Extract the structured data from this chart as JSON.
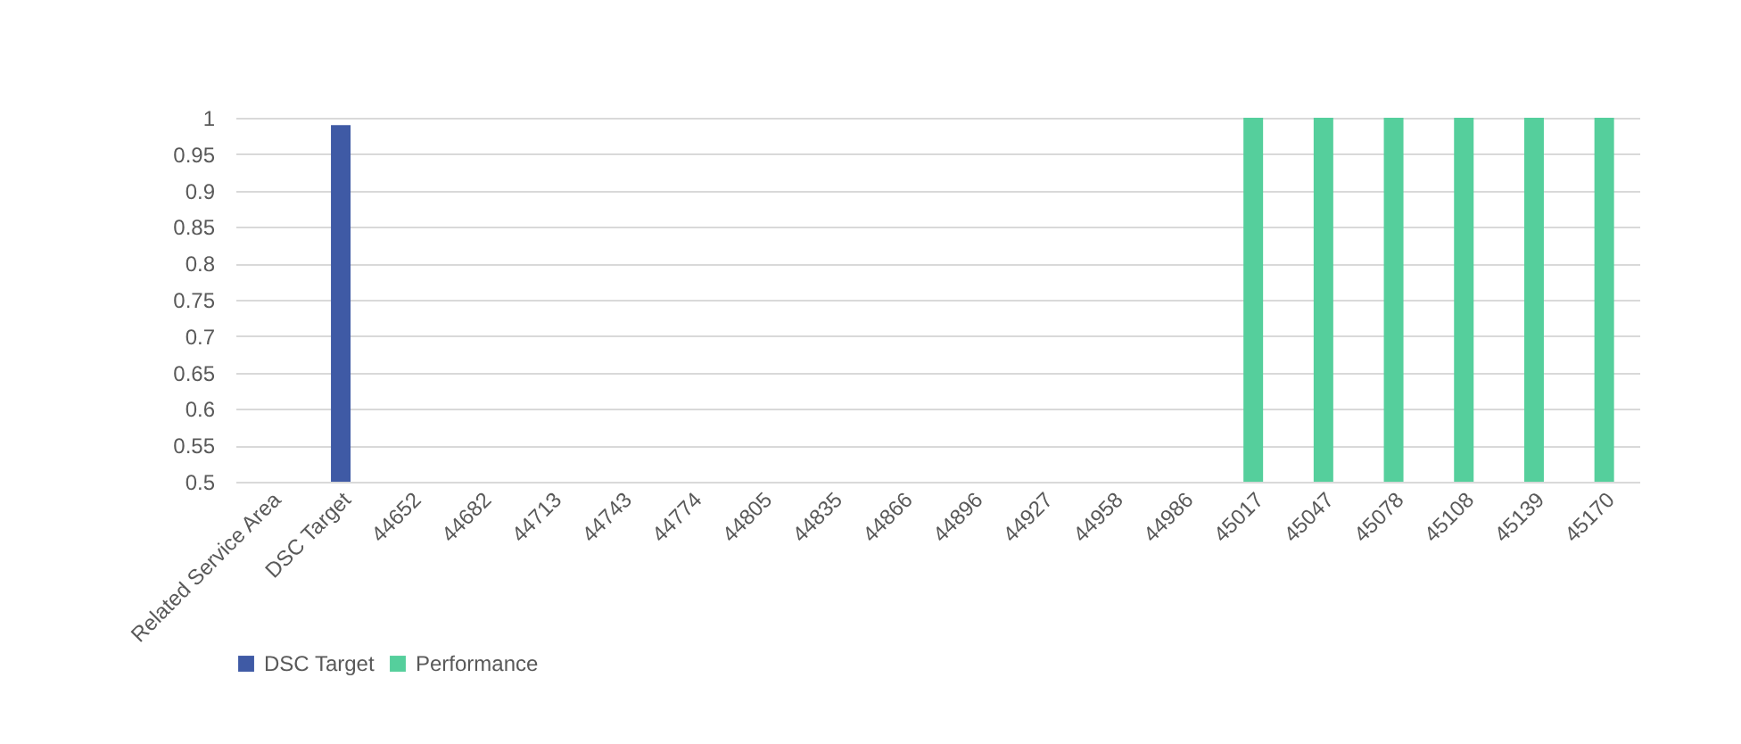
{
  "chart_data": {
    "type": "bar",
    "categories": [
      "Related Service Area",
      "DSC Target",
      "44652",
      "44682",
      "44713",
      "44743",
      "44774",
      "44805",
      "44835",
      "44866",
      "44896",
      "44927",
      "44958",
      "44986",
      "45017",
      "45047",
      "45078",
      "45108",
      "45139",
      "45170"
    ],
    "series": [
      {
        "name": "DSC Target",
        "color": "#3f5aa5",
        "values": [
          null,
          0.99,
          null,
          null,
          null,
          null,
          null,
          null,
          null,
          null,
          null,
          null,
          null,
          null,
          null,
          null,
          null,
          null,
          null,
          null
        ]
      },
      {
        "name": "Performance",
        "color": "#55cf9c",
        "values": [
          null,
          null,
          null,
          null,
          null,
          null,
          null,
          null,
          null,
          null,
          null,
          null,
          null,
          null,
          1,
          1,
          1,
          1,
          1,
          1
        ]
      }
    ],
    "ylim": [
      0.5,
      1
    ],
    "yticks": [
      0.5,
      0.55,
      0.6,
      0.65,
      0.7,
      0.75,
      0.8,
      0.85,
      0.9,
      0.95,
      1
    ],
    "grid": "y",
    "legend": "bottom"
  }
}
